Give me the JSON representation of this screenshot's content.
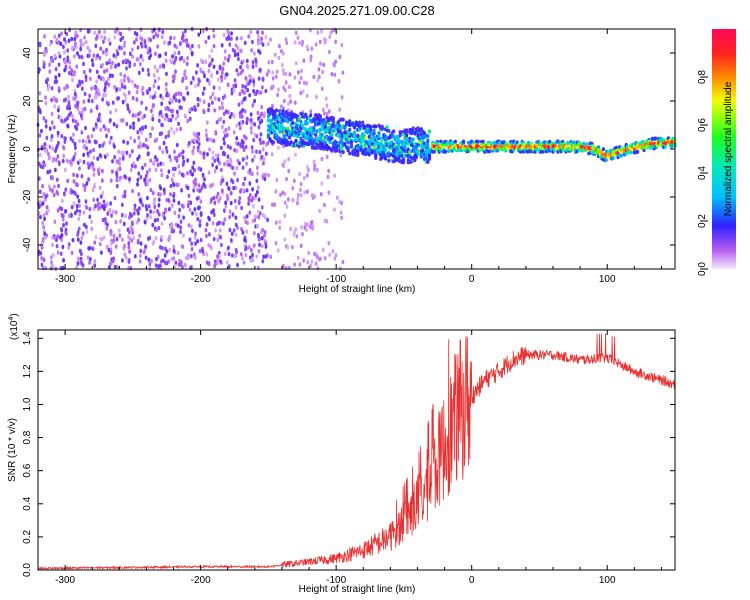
{
  "title": "GN04.2025.271.09.00.C28",
  "colors": {
    "snr_line": "#e83030",
    "background": "#ffffff",
    "axis": "#000000"
  },
  "chart_data": [
    {
      "type": "heatmap",
      "name": "spectrogram",
      "xlabel": "Height of straight line (km)",
      "ylabel": "Frequency (Hz)",
      "xlim": [
        -320,
        150
      ],
      "ylim": [
        -50,
        50
      ],
      "xticks": [
        -300,
        -200,
        -100,
        0,
        100
      ],
      "yticks": [
        -40,
        -20,
        0,
        20,
        40
      ],
      "colorbar": {
        "label": "Normalized spectral amplitude",
        "range": [
          0,
          1
        ],
        "ticks": [
          "0.0",
          "0.2",
          "0.4",
          "0.6",
          "0.8"
        ]
      },
      "noise_region_km": [
        -320,
        -150
      ],
      "ridge": {
        "x": [
          -150,
          -130,
          -110,
          -90,
          -70,
          -50,
          -40,
          -30,
          0,
          40,
          80,
          90,
          100,
          110,
          130,
          150
        ],
        "freq_hz": [
          10,
          8,
          7,
          5,
          3,
          1,
          2,
          1,
          1,
          1,
          1,
          0,
          -3,
          -1,
          2,
          3
        ]
      }
    },
    {
      "type": "line",
      "name": "snr",
      "xlabel": "Height of straight line (km)",
      "ylabel": "SNR (10 * v/v)",
      "y_exponent_label": "(x10",
      "y_exponent_power": "4",
      "y_exponent_close": ")",
      "xlim": [
        -320,
        150
      ],
      "ylim": [
        0,
        1.45
      ],
      "xticks": [
        -300,
        -200,
        -100,
        0,
        100
      ],
      "yticks": [
        "0.0",
        "0.2",
        "0.4",
        "0.6",
        "0.8",
        "1.0",
        "1.2",
        "1.4"
      ],
      "series": [
        {
          "name": "SNR",
          "x": [
            -320,
            -200,
            -150,
            -130,
            -100,
            -80,
            -60,
            -50,
            -40,
            -30,
            -20,
            -10,
            0,
            10,
            20,
            30,
            40,
            60,
            80,
            100,
            120,
            150
          ],
          "y": [
            0.01,
            0.02,
            0.02,
            0.04,
            0.07,
            0.12,
            0.2,
            0.3,
            0.4,
            0.55,
            0.75,
            0.95,
            1.05,
            1.15,
            1.2,
            1.27,
            1.3,
            1.3,
            1.27,
            1.28,
            1.2,
            1.12
          ]
        }
      ]
    }
  ]
}
